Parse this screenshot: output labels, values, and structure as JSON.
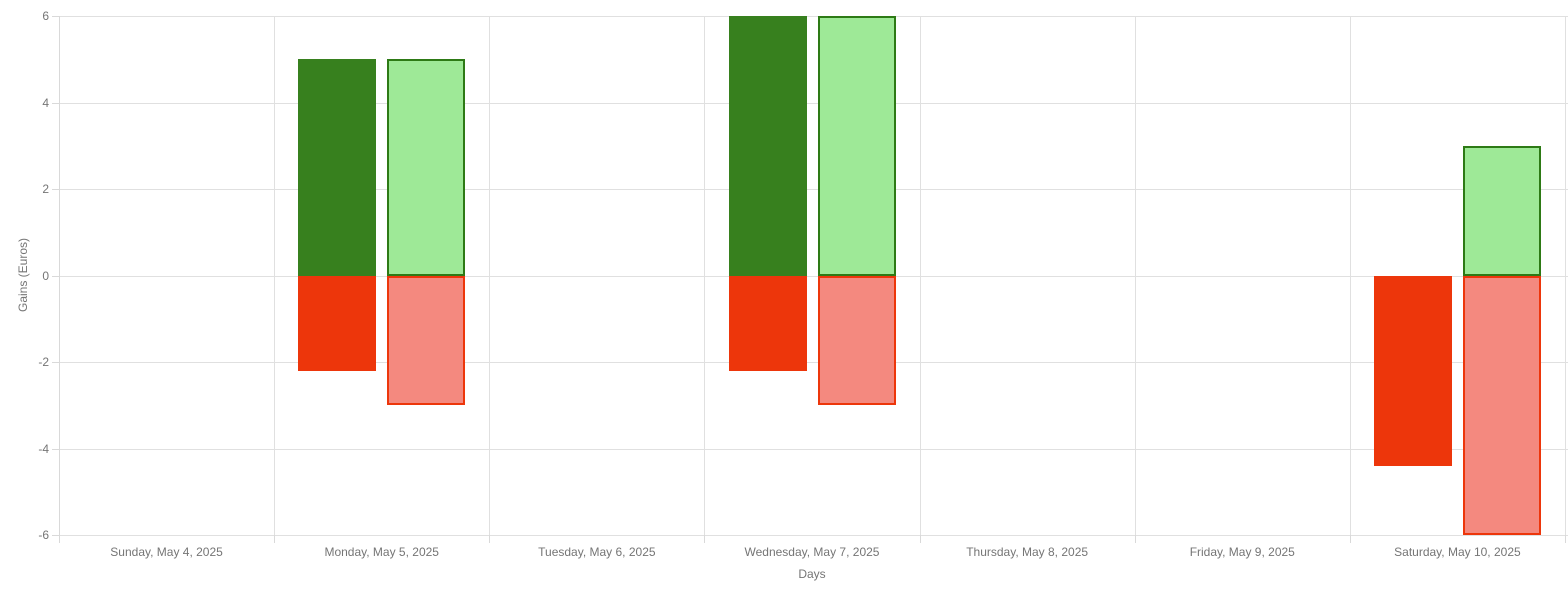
{
  "chart_data": {
    "type": "bar",
    "title": "",
    "xlabel": "Days",
    "ylabel": "Gains (Euros)",
    "ylim": [
      -6,
      6
    ],
    "yticks": [
      6,
      4,
      2,
      0,
      -2,
      -4,
      -6
    ],
    "grid": true,
    "legend": "none",
    "categories": [
      "Sunday, May 4, 2025",
      "Monday, May 5, 2025",
      "Tuesday, May 6, 2025",
      "Wednesday, May 7, 2025",
      "Thursday, May 8, 2025",
      "Friday, May 9, 2025",
      "Saturday, May 10, 2025"
    ],
    "series": [
      {
        "name": "gains-losses-solid",
        "slot": 0,
        "bordered": false,
        "gain_color": "#37801e",
        "loss_color": "#ed360b",
        "gains": [
          0,
          5,
          0,
          6,
          0,
          0,
          0
        ],
        "losses": [
          0,
          -2.2,
          0,
          -2.2,
          0,
          0,
          -4.4
        ]
      },
      {
        "name": "gains-losses-light",
        "slot": 1,
        "bordered": true,
        "gain_color": "#9ee997",
        "gain_border_color": "#2d7a15",
        "loss_color": "#f4897f",
        "loss_border_color": "#ed360b",
        "gains": [
          0,
          5,
          0,
          6,
          0,
          0,
          3
        ],
        "losses": [
          0,
          -3,
          0,
          -3,
          0,
          0,
          -6
        ]
      }
    ],
    "style": {
      "background": "#ffffff",
      "grid_color": "#e0e0e0",
      "axis_color": "#d9d9d9",
      "text_color": "#757575"
    }
  }
}
